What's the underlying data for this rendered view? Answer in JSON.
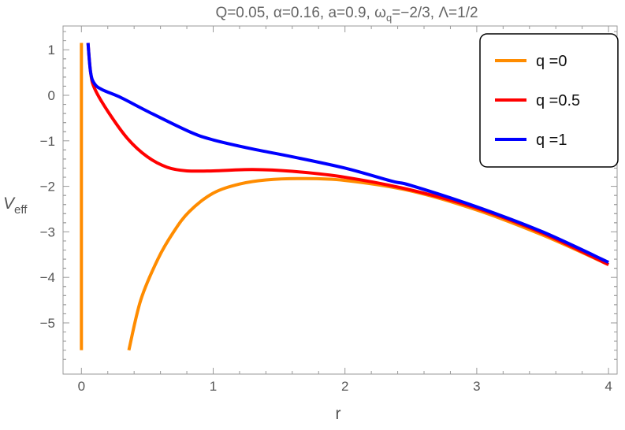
{
  "chart_data": {
    "type": "line",
    "title": "Q=0.05, α=0.16, a=0.9, ω_q=−2/3, Λ=1/2",
    "title_parts": {
      "main": "Q=0.05, α=0.16, a=0.9, ω",
      "sub": "q",
      "rest": "=−2/3, Λ=1/2"
    },
    "xlabel": "r",
    "ylabel": {
      "main": "V",
      "sub": "eff"
    },
    "xlim": [
      -0.14,
      4.06
    ],
    "ylim": [
      -5.9,
      1.5
    ],
    "xticks": [
      "0",
      "1",
      "2",
      "3",
      "4"
    ],
    "yticks": [
      "1",
      "0",
      "−1",
      "−2",
      "−3",
      "−4",
      "−5"
    ],
    "grid": false,
    "legend_position": "top-right",
    "series": [
      {
        "name": "q =0",
        "color": "#ff8c00",
        "segments": [
          [
            [
              0,
              1.15
            ],
            [
              0,
              -5.6
            ]
          ],
          [
            [
              0.36,
              -5.6
            ],
            [
              0.45,
              -4.5
            ],
            [
              0.58,
              -3.6
            ],
            [
              0.7,
              -3.0
            ],
            [
              0.82,
              -2.55
            ],
            [
              1.0,
              -2.15
            ],
            [
              1.2,
              -1.95
            ],
            [
              1.4,
              -1.86
            ],
            [
              1.66,
              -1.83
            ],
            [
              2.0,
              -1.87
            ],
            [
              2.5,
              -2.1
            ],
            [
              3.0,
              -2.52
            ],
            [
              3.5,
              -3.07
            ],
            [
              4.0,
              -3.72
            ]
          ]
        ]
      },
      {
        "name": "q =0.5",
        "color": "#ff0000",
        "segments": [
          [
            [
              0.05,
              1.15
            ],
            [
              0.07,
              0.5
            ],
            [
              0.1,
              0.15
            ],
            [
              0.2,
              -0.35
            ],
            [
              0.35,
              -0.95
            ],
            [
              0.5,
              -1.35
            ],
            [
              0.65,
              -1.58
            ],
            [
              0.8,
              -1.66
            ],
            [
              1.0,
              -1.66
            ],
            [
              1.3,
              -1.63
            ],
            [
              1.6,
              -1.67
            ],
            [
              2.0,
              -1.8
            ],
            [
              2.5,
              -2.08
            ],
            [
              3.0,
              -2.48
            ],
            [
              3.5,
              -3.03
            ],
            [
              4.0,
              -3.72
            ]
          ]
        ]
      },
      {
        "name": "q =1",
        "color": "#0000ff",
        "segments": [
          [
            [
              0.05,
              1.15
            ],
            [
              0.07,
              0.5
            ],
            [
              0.1,
              0.25
            ],
            [
              0.16,
              0.12
            ],
            [
              0.3,
              -0.05
            ],
            [
              0.5,
              -0.35
            ],
            [
              0.82,
              -0.8
            ],
            [
              1.0,
              -0.98
            ],
            [
              1.3,
              -1.18
            ],
            [
              1.6,
              -1.35
            ],
            [
              2.0,
              -1.6
            ],
            [
              2.36,
              -1.89
            ],
            [
              2.5,
              -1.98
            ],
            [
              3.0,
              -2.45
            ],
            [
              3.5,
              -3.0
            ],
            [
              4.0,
              -3.67
            ]
          ]
        ]
      }
    ]
  }
}
